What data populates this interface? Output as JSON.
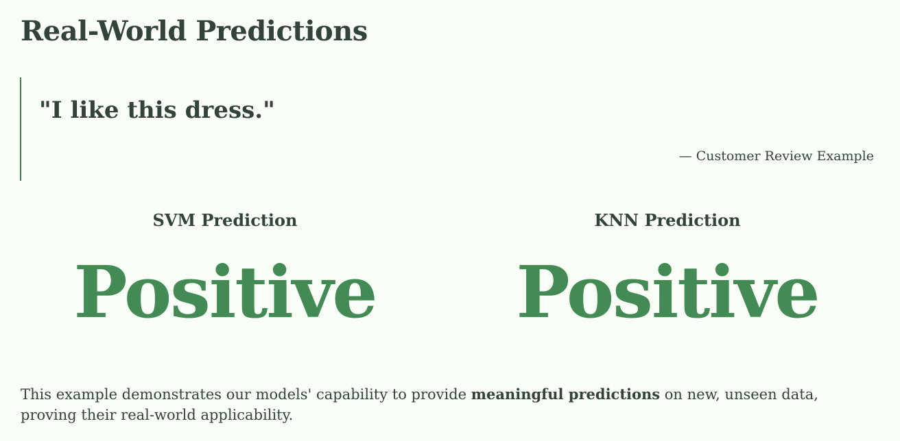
{
  "page": {
    "title": "Real-World Predictions"
  },
  "quote": {
    "text": "\"I like this dress.\"",
    "attribution": "— Customer Review Example"
  },
  "predictions": [
    {
      "model_label": "SVM Prediction",
      "result": "Positive"
    },
    {
      "model_label": "KNN Prediction",
      "result": "Positive"
    }
  ],
  "summary": {
    "prefix": "This example demonstrates our models' capability to provide ",
    "emphasis": "meaningful predictions",
    "suffix": " on new, unseen data, proving their real-world applicability."
  },
  "colors": {
    "background": "#f8fdf6",
    "text": "#34433a",
    "accent": "#438a55",
    "quote_border": "#3f7f55"
  }
}
